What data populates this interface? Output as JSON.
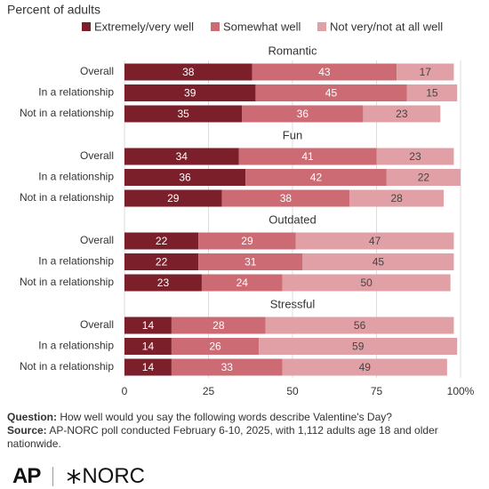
{
  "chart_data": {
    "type": "bar",
    "orientation": "horizontal",
    "stacked": true,
    "subtitle": "Percent of adults",
    "series": [
      {
        "name": "Extremely/very well",
        "color": "#7b1f2b"
      },
      {
        "name": "Somewhat well",
        "color": "#cc6b73"
      },
      {
        "name": "Not very/not at all well",
        "color": "#e0a0a6"
      }
    ],
    "groups": [
      {
        "title": "Romantic",
        "categories": [
          "Overall",
          "In a relationship",
          "Not in a relationship"
        ],
        "values": [
          [
            38,
            39,
            35
          ],
          [
            43,
            45,
            36
          ],
          [
            17,
            15,
            23
          ]
        ]
      },
      {
        "title": "Fun",
        "categories": [
          "Overall",
          "In a relationship",
          "Not in a relationship"
        ],
        "values": [
          [
            34,
            36,
            29
          ],
          [
            41,
            42,
            38
          ],
          [
            23,
            22,
            28
          ]
        ]
      },
      {
        "title": "Outdated",
        "categories": [
          "Overall",
          "In a relationship",
          "Not in a relationship"
        ],
        "values": [
          [
            22,
            22,
            23
          ],
          [
            29,
            31,
            24
          ],
          [
            47,
            45,
            50
          ]
        ]
      },
      {
        "title": "Stressful",
        "categories": [
          "Overall",
          "In a relationship",
          "Not in a relationship"
        ],
        "values": [
          [
            14,
            14,
            14
          ],
          [
            28,
            26,
            33
          ],
          [
            56,
            59,
            49
          ]
        ]
      }
    ],
    "xlim": [
      0,
      100
    ],
    "xticks": [
      0,
      25,
      50,
      75,
      {
        "value": 100,
        "label": "100%"
      }
    ],
    "grid": true,
    "question_label": "Question:",
    "question": "How well would you say the following words describe Valentine's Day?",
    "source_label": "Source:",
    "source": "AP-NORC poll conducted February 6-10, 2025, with 1,112 adults age 18 and older nationwide.",
    "logos": [
      "AP",
      "NORC"
    ]
  }
}
